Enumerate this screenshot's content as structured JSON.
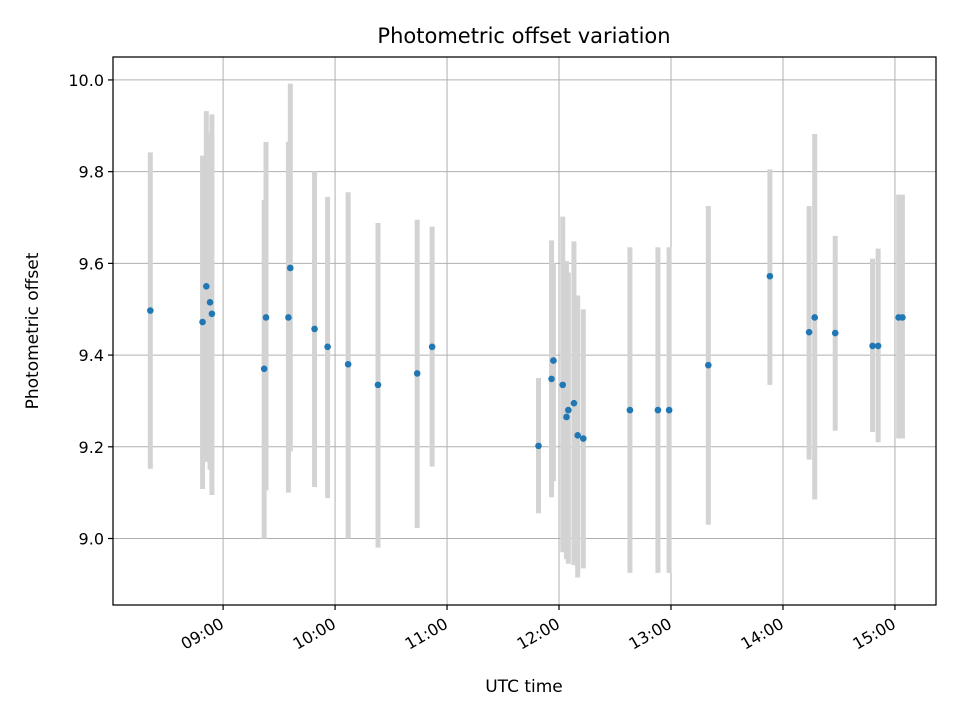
{
  "chart_data": {
    "type": "scatter",
    "title": "Photometric offset variation",
    "xlabel": "UTC time",
    "ylabel": "Photometric offset",
    "xlim": [
      8.0167,
      15.3667
    ],
    "ylim": [
      8.855,
      10.05
    ],
    "grid": true,
    "colors": {
      "point": "#1f77b4",
      "errorbar": "#d3d3d3",
      "grid": "#b0b0b0"
    },
    "x_ticks": [
      {
        "value": 9,
        "label": "09:00"
      },
      {
        "value": 10,
        "label": "10:00"
      },
      {
        "value": 11,
        "label": "11:00"
      },
      {
        "value": 12,
        "label": "12:00"
      },
      {
        "value": 13,
        "label": "13:00"
      },
      {
        "value": 14,
        "label": "14:00"
      },
      {
        "value": 15,
        "label": "15:00"
      }
    ],
    "y_ticks": [
      {
        "value": 9.0,
        "label": "9.0"
      },
      {
        "value": 9.2,
        "label": "9.2"
      },
      {
        "value": 9.4,
        "label": "9.4"
      },
      {
        "value": 9.6,
        "label": "9.6"
      },
      {
        "value": 9.8,
        "label": "9.8"
      },
      {
        "value": 10.0,
        "label": "10.0"
      }
    ],
    "points": [
      {
        "time": "08:21",
        "x": 8.35,
        "y": 9.497,
        "low": 9.152,
        "high": 9.842
      },
      {
        "time": "08:49",
        "x": 8.8167,
        "y": 9.472,
        "low": 9.108,
        "high": 9.835
      },
      {
        "time": "08:51",
        "x": 8.85,
        "y": 9.55,
        "low": 9.167,
        "high": 9.932
      },
      {
        "time": "08:53",
        "x": 8.8833,
        "y": 9.515,
        "low": 9.15,
        "high": 9.885
      },
      {
        "time": "08:54",
        "x": 8.9,
        "y": 9.49,
        "low": 9.095,
        "high": 9.925
      },
      {
        "time": "09:22",
        "x": 9.3667,
        "y": 9.37,
        "low": 9.0,
        "high": 9.738
      },
      {
        "time": "09:23",
        "x": 9.3833,
        "y": 9.482,
        "low": 9.105,
        "high": 9.865
      },
      {
        "time": "09:35",
        "x": 9.5833,
        "y": 9.482,
        "low": 9.1,
        "high": 9.865
      },
      {
        "time": "09:36",
        "x": 9.6,
        "y": 9.59,
        "low": 9.19,
        "high": 9.992
      },
      {
        "time": "09:49",
        "x": 9.8167,
        "y": 9.457,
        "low": 9.112,
        "high": 9.8
      },
      {
        "time": "09:56",
        "x": 9.9333,
        "y": 9.418,
        "low": 9.088,
        "high": 9.745
      },
      {
        "time": "10:07",
        "x": 10.1167,
        "y": 9.38,
        "low": 9.0,
        "high": 9.755
      },
      {
        "time": "10:23",
        "x": 10.3833,
        "y": 9.335,
        "low": 8.98,
        "high": 9.688
      },
      {
        "time": "10:44",
        "x": 10.7333,
        "y": 9.36,
        "low": 9.023,
        "high": 9.695
      },
      {
        "time": "10:52",
        "x": 10.8667,
        "y": 9.418,
        "low": 9.157,
        "high": 9.68
      },
      {
        "time": "11:49",
        "x": 11.8167,
        "y": 9.202,
        "low": 9.055,
        "high": 9.35
      },
      {
        "time": "11:56",
        "x": 11.9333,
        "y": 9.348,
        "low": 9.09,
        "high": 9.65
      },
      {
        "time": "11:57",
        "x": 11.95,
        "y": 9.388,
        "low": 9.125,
        "high": 9.6
      },
      {
        "time": "12:02",
        "x": 12.0333,
        "y": 9.335,
        "low": 8.97,
        "high": 9.702
      },
      {
        "time": "12:04",
        "x": 12.0667,
        "y": 9.265,
        "low": 8.955,
        "high": 9.605
      },
      {
        "time": "12:05",
        "x": 12.0833,
        "y": 9.28,
        "low": 8.945,
        "high": 9.58
      },
      {
        "time": "12:08",
        "x": 12.1333,
        "y": 9.295,
        "low": 8.942,
        "high": 9.648
      },
      {
        "time": "12:10",
        "x": 12.1667,
        "y": 9.225,
        "low": 8.915,
        "high": 9.53
      },
      {
        "time": "12:13",
        "x": 12.2167,
        "y": 9.218,
        "low": 8.935,
        "high": 9.5
      },
      {
        "time": "12:38",
        "x": 12.6333,
        "y": 9.28,
        "low": 8.925,
        "high": 9.635
      },
      {
        "time": "12:53",
        "x": 12.8833,
        "y": 9.28,
        "low": 8.925,
        "high": 9.635
      },
      {
        "time": "12:59",
        "x": 12.9833,
        "y": 9.28,
        "low": 8.925,
        "high": 9.635
      },
      {
        "time": "13:20",
        "x": 13.3333,
        "y": 9.378,
        "low": 9.03,
        "high": 9.725
      },
      {
        "time": "13:53",
        "x": 13.8833,
        "y": 9.572,
        "low": 9.335,
        "high": 9.805
      },
      {
        "time": "14:14",
        "x": 14.2333,
        "y": 9.45,
        "low": 9.172,
        "high": 9.725
      },
      {
        "time": "14:17",
        "x": 14.2833,
        "y": 9.482,
        "low": 9.085,
        "high": 9.882
      },
      {
        "time": "14:28",
        "x": 14.4667,
        "y": 9.448,
        "low": 9.235,
        "high": 9.66
      },
      {
        "time": "14:48",
        "x": 14.8,
        "y": 9.42,
        "low": 9.232,
        "high": 9.61
      },
      {
        "time": "14:51",
        "x": 14.85,
        "y": 9.42,
        "low": 9.21,
        "high": 9.632
      },
      {
        "time": "15:02",
        "x": 15.0333,
        "y": 9.482,
        "low": 9.218,
        "high": 9.75
      },
      {
        "time": "15:04",
        "x": 15.0667,
        "y": 9.482,
        "low": 9.218,
        "high": 9.75
      }
    ]
  }
}
